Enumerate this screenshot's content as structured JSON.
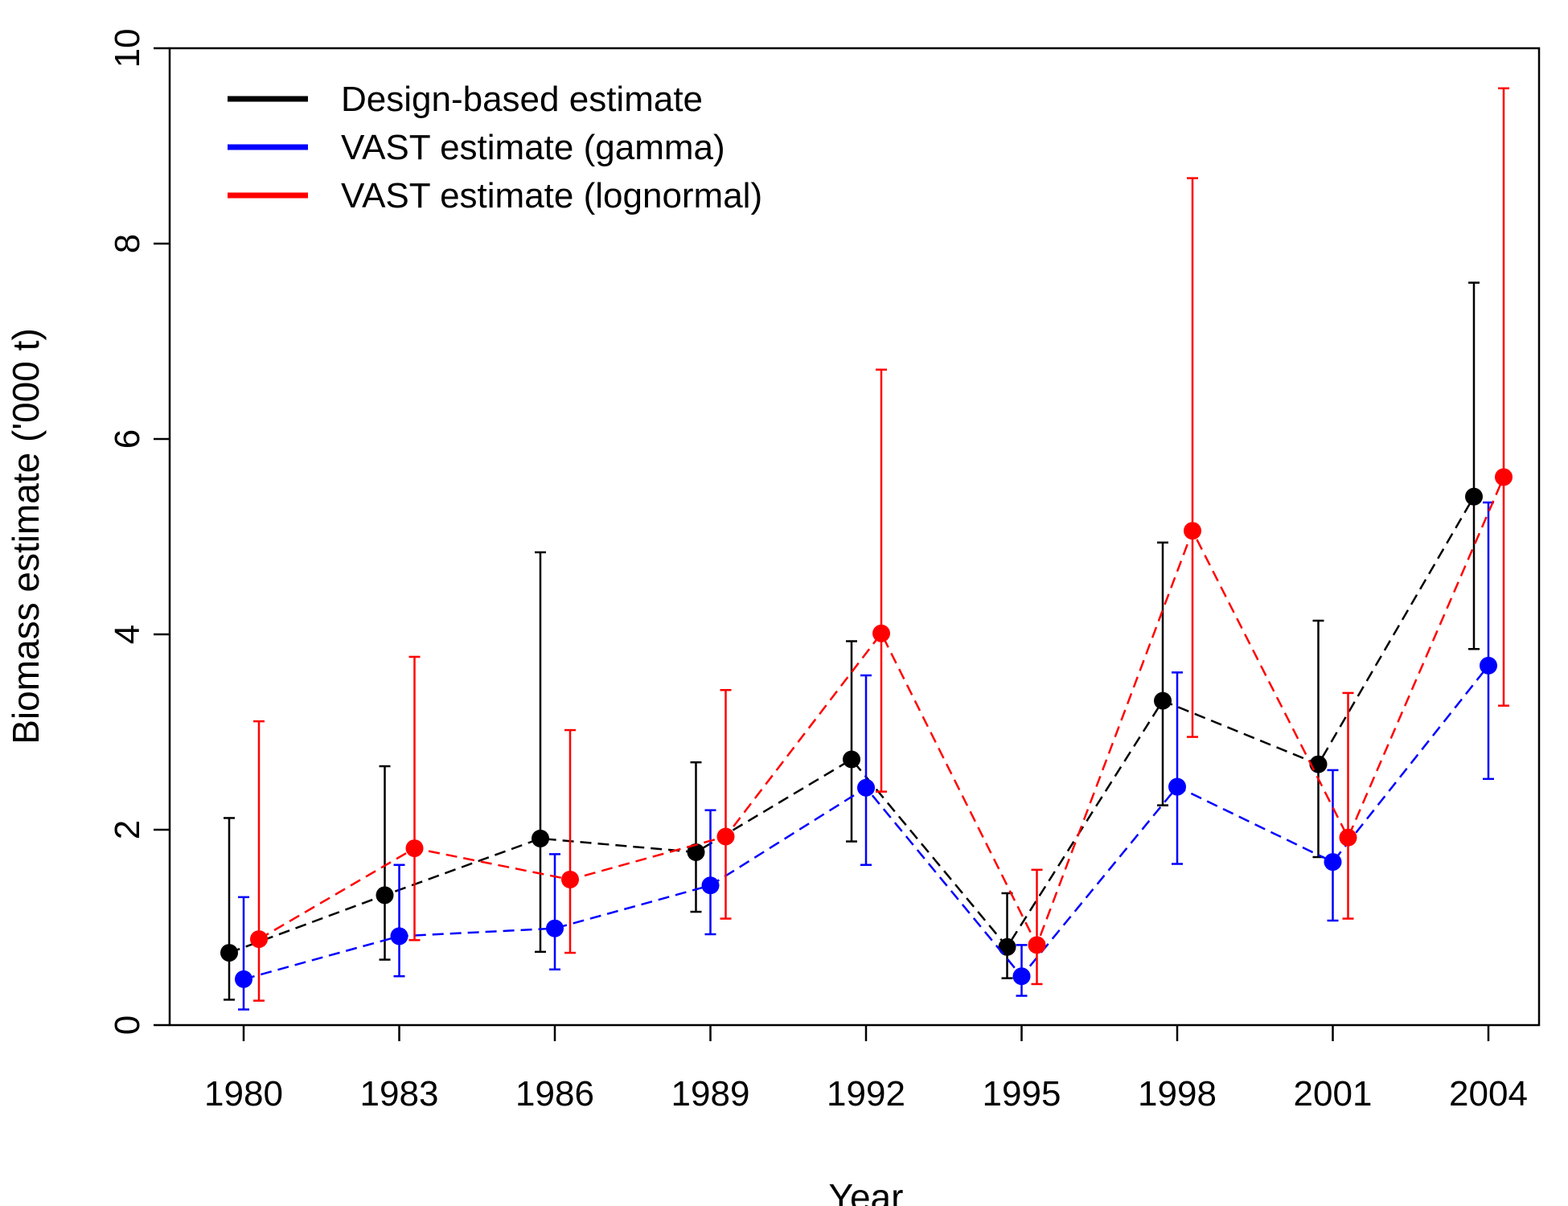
{
  "chart_data": {
    "type": "line",
    "xlabel": "Year",
    "ylabel": "Biomass estimate ('000 t)",
    "ylim": [
      0,
      10
    ],
    "yticks": [
      0,
      2,
      4,
      6,
      8,
      10
    ],
    "categories": [
      "1980",
      "1983",
      "1986",
      "1989",
      "1992",
      "1995",
      "1998",
      "2001",
      "2004"
    ],
    "grid": false,
    "legend_position": "top-left",
    "series": [
      {
        "name": "Design-based estimate",
        "color": "#000000",
        "values": [
          0.74,
          1.33,
          1.91,
          1.77,
          2.72,
          0.8,
          3.32,
          2.67,
          5.41
        ],
        "lower": [
          0.26,
          0.67,
          0.75,
          1.16,
          1.88,
          0.48,
          2.25,
          1.72,
          3.85
        ],
        "upper": [
          2.12,
          2.65,
          4.84,
          2.69,
          3.93,
          1.35,
          4.94,
          4.14,
          7.6
        ]
      },
      {
        "name": "VAST estimate (gamma)",
        "color": "#0000ff",
        "values": [
          0.47,
          0.91,
          0.99,
          1.43,
          2.43,
          0.5,
          2.44,
          1.67,
          3.68
        ],
        "lower": [
          0.16,
          0.5,
          0.57,
          0.93,
          1.64,
          0.3,
          1.65,
          1.07,
          2.52
        ],
        "upper": [
          1.31,
          1.64,
          1.75,
          2.2,
          3.58,
          0.82,
          3.61,
          2.61,
          5.35
        ]
      },
      {
        "name": "VAST estimate (lognormal)",
        "color": "#ff0000",
        "values": [
          0.88,
          1.81,
          1.49,
          1.93,
          4.01,
          0.82,
          5.06,
          1.92,
          5.61
        ],
        "lower": [
          0.25,
          0.87,
          0.74,
          1.09,
          2.39,
          0.42,
          2.95,
          1.09,
          3.27
        ],
        "upper": [
          3.11,
          3.77,
          3.02,
          3.43,
          6.71,
          1.59,
          8.67,
          3.4,
          9.59
        ]
      }
    ]
  }
}
